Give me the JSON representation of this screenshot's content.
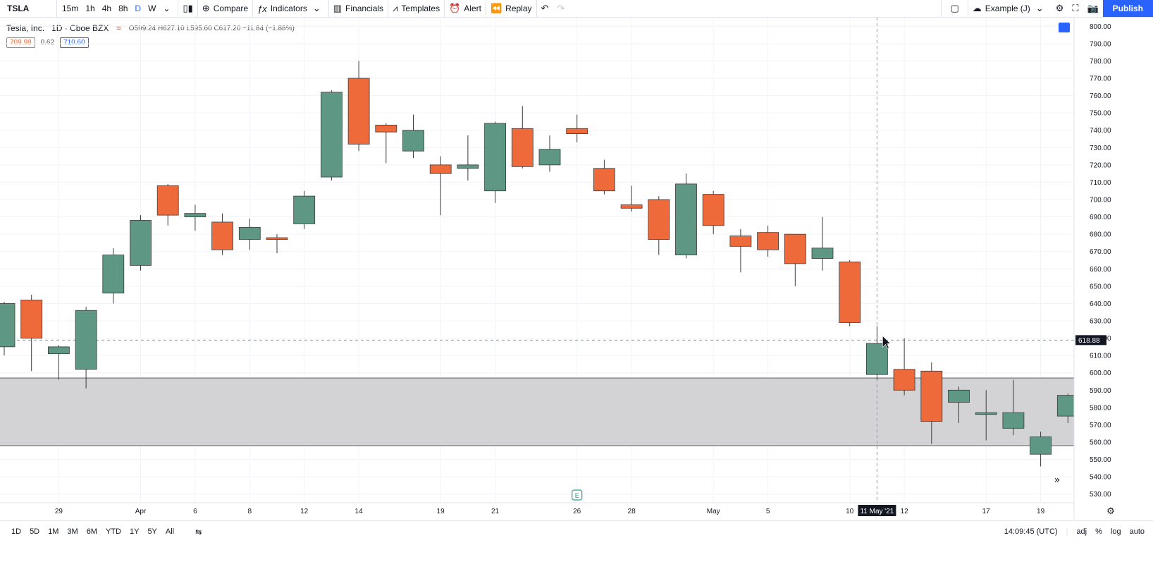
{
  "toolbar": {
    "symbol": "TSLA",
    "intervals": [
      "15m",
      "1h",
      "4h",
      "8h",
      "D",
      "W"
    ],
    "active_interval": "D",
    "compare": "Compare",
    "indicators": "Indicators",
    "financials": "Financials",
    "templates": "Templates",
    "alert": "Alert",
    "replay": "Replay",
    "layout_name": "Example (J)",
    "publish": "Publish"
  },
  "legend": {
    "name": "Tesla, Inc.",
    "exchange": "1D · Cboe BZX",
    "ohlc": "O599.24 H627.10 L595.60 C617.20 −11.84 (−1.88%)",
    "bid": "709.98",
    "spread": "0.62",
    "ask": "710.60"
  },
  "colors": {
    "up": "#5f9785",
    "down": "#ee6a3a",
    "zone": "#d1d1d4",
    "accent": "#2962ff"
  },
  "chart_data": {
    "type": "candlestick",
    "ylim": [
      525,
      805
    ],
    "y_ticks": [
      530,
      540,
      550,
      560,
      570,
      580,
      590,
      600,
      610,
      620,
      630,
      640,
      650,
      660,
      670,
      680,
      690,
      700,
      710,
      720,
      730,
      740,
      750,
      760,
      770,
      780,
      790,
      800
    ],
    "x_labels": [
      {
        "label": "29",
        "idx": 2
      },
      {
        "label": "Apr",
        "idx": 5
      },
      {
        "label": "6",
        "idx": 7
      },
      {
        "label": "8",
        "idx": 9
      },
      {
        "label": "12",
        "idx": 11
      },
      {
        "label": "14",
        "idx": 13
      },
      {
        "label": "19",
        "idx": 16
      },
      {
        "label": "21",
        "idx": 18
      },
      {
        "label": "26",
        "idx": 21
      },
      {
        "label": "28",
        "idx": 23
      },
      {
        "label": "May",
        "idx": 26
      },
      {
        "label": "5",
        "idx": 28
      },
      {
        "label": "10",
        "idx": 31
      },
      {
        "label": "12",
        "idx": 33
      },
      {
        "label": "17",
        "idx": 36
      },
      {
        "label": "19",
        "idx": 38
      }
    ],
    "crosshair": {
      "label": "11 May '21",
      "idx": 32,
      "price": "618.88"
    },
    "zone": [
      558,
      597
    ],
    "candles": [
      {
        "o": 615,
        "h": 641,
        "l": 610,
        "c": 640
      },
      {
        "o": 642,
        "h": 645,
        "l": 601,
        "c": 620
      },
      {
        "o": 611,
        "h": 616,
        "l": 596,
        "c": 615
      },
      {
        "o": 602,
        "h": 638,
        "l": 591,
        "c": 636
      },
      {
        "o": 646,
        "h": 672,
        "l": 640,
        "c": 668
      },
      {
        "o": 662,
        "h": 691,
        "l": 659,
        "c": 688
      },
      {
        "o": 708,
        "h": 709,
        "l": 685,
        "c": 691
      },
      {
        "o": 690,
        "h": 697,
        "l": 682,
        "c": 692
      },
      {
        "o": 687,
        "h": 692,
        "l": 668,
        "c": 671
      },
      {
        "o": 677,
        "h": 689,
        "l": 671,
        "c": 684
      },
      {
        "o": 678,
        "h": 680,
        "l": 669,
        "c": 677
      },
      {
        "o": 686,
        "h": 705,
        "l": 683,
        "c": 702
      },
      {
        "o": 713,
        "h": 763,
        "l": 711,
        "c": 762
      },
      {
        "o": 770,
        "h": 780,
        "l": 728,
        "c": 732
      },
      {
        "o": 743,
        "h": 744,
        "l": 721,
        "c": 739
      },
      {
        "o": 728,
        "h": 749,
        "l": 724,
        "c": 740
      },
      {
        "o": 720,
        "h": 725,
        "l": 691,
        "c": 715
      },
      {
        "o": 718,
        "h": 737,
        "l": 711,
        "c": 720
      },
      {
        "o": 705,
        "h": 745,
        "l": 698,
        "c": 744
      },
      {
        "o": 741,
        "h": 754,
        "l": 718,
        "c": 719
      },
      {
        "o": 720,
        "h": 737,
        "l": 716,
        "c": 729
      },
      {
        "o": 741,
        "h": 749,
        "l": 733,
        "c": 738
      },
      {
        "o": 718,
        "h": 723,
        "l": 703,
        "c": 705
      },
      {
        "o": 697,
        "h": 708,
        "l": 693,
        "c": 695
      },
      {
        "o": 700,
        "h": 702,
        "l": 668,
        "c": 677
      },
      {
        "o": 668,
        "h": 715,
        "l": 666,
        "c": 709
      },
      {
        "o": 703,
        "h": 705,
        "l": 680,
        "c": 685
      },
      {
        "o": 679,
        "h": 683,
        "l": 658,
        "c": 673
      },
      {
        "o": 681,
        "h": 685,
        "l": 667,
        "c": 671
      },
      {
        "o": 680,
        "h": 680,
        "l": 650,
        "c": 663
      },
      {
        "o": 666,
        "h": 690,
        "l": 659,
        "c": 672
      },
      {
        "o": 664,
        "h": 665,
        "l": 627,
        "c": 629
      },
      {
        "o": 599,
        "h": 627,
        "l": 596,
        "c": 617
      },
      {
        "o": 602,
        "h": 620,
        "l": 587,
        "c": 590
      },
      {
        "o": 601,
        "h": 606,
        "l": 559,
        "c": 572
      },
      {
        "o": 583,
        "h": 592,
        "l": 571,
        "c": 590
      },
      {
        "o": 576,
        "h": 590,
        "l": 561,
        "c": 577
      },
      {
        "o": 568,
        "h": 596,
        "l": 564,
        "c": 577
      },
      {
        "o": 553,
        "h": 566,
        "l": 546,
        "c": 563
      },
      {
        "o": 575,
        "h": 588,
        "l": 571,
        "c": 587
      }
    ]
  },
  "bottom": {
    "ranges": [
      "1D",
      "5D",
      "1M",
      "3M",
      "6M",
      "YTD",
      "1Y",
      "5Y",
      "All"
    ],
    "time": "14:09:45 (UTC)",
    "adj": "adj",
    "percent": "%",
    "log": "log",
    "auto": "auto"
  }
}
